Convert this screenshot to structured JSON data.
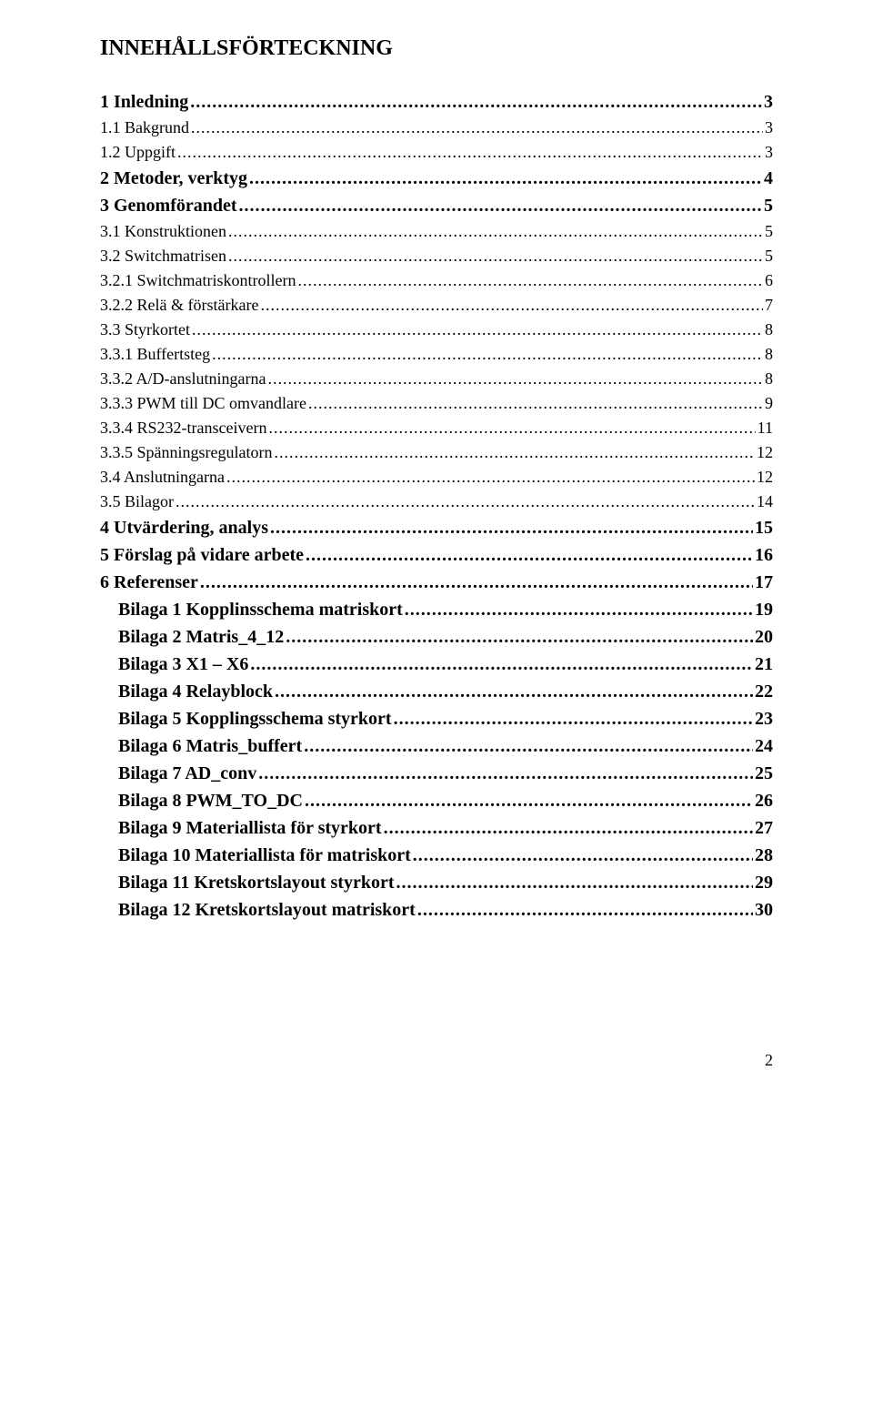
{
  "title": "INNEHÅLLSFÖRTECKNING",
  "entries": [
    {
      "label": "1 Inledning",
      "page": "3",
      "cls": "lvl1"
    },
    {
      "label": "1.1 Bakgrund",
      "page": "3",
      "cls": "lvl2"
    },
    {
      "label": "1.2 Uppgift",
      "page": "3",
      "cls": "lvl2"
    },
    {
      "label": "2 Metoder, verktyg",
      "page": "4",
      "cls": "lvl1"
    },
    {
      "label": "3 Genomförandet",
      "page": "5",
      "cls": "lvl1"
    },
    {
      "label": "3.1 Konstruktionen",
      "page": "5",
      "cls": "lvl2"
    },
    {
      "label": "3.2 Switchmatrisen",
      "page": "5",
      "cls": "lvl2"
    },
    {
      "label": "3.2.1 Switchmatriskontrollern",
      "page": "6",
      "cls": "lvl3"
    },
    {
      "label": "3.2.2 Relä & förstärkare",
      "page": "7",
      "cls": "lvl3"
    },
    {
      "label": "3.3 Styrkortet",
      "page": "8",
      "cls": "lvl2"
    },
    {
      "label": "3.3.1 Buffertsteg",
      "page": "8",
      "cls": "lvl3"
    },
    {
      "label": "3.3.2 A/D-anslutningarna",
      "page": "8",
      "cls": "lvl3"
    },
    {
      "label": "3.3.3 PWM till DC omvandlare",
      "page": "9",
      "cls": "lvl3"
    },
    {
      "label": "3.3.4 RS232-transceivern",
      "page": "11",
      "cls": "lvl3"
    },
    {
      "label": "3.3.5 Spänningsregulatorn",
      "page": "12",
      "cls": "lvl3"
    },
    {
      "label": "3.4 Anslutningarna",
      "page": "12",
      "cls": "lvl2"
    },
    {
      "label": "3.5 Bilagor",
      "page": "14",
      "cls": "lvl2"
    },
    {
      "label": "4 Utvärdering, analys",
      "page": "15",
      "cls": "lvl1"
    },
    {
      "label": "5 Förslag på vidare arbete",
      "page": "16",
      "cls": "lvl1"
    },
    {
      "label": "6 Referenser",
      "page": "17",
      "cls": "lvl1"
    },
    {
      "label": "Bilaga 1 Kopplinsschema matriskort",
      "page": "19",
      "cls": "lvl2b"
    },
    {
      "label": "Bilaga 2 Matris_4_12",
      "page": "20",
      "cls": "lvl2b"
    },
    {
      "label": "Bilaga 3 X1 – X6",
      "page": "21",
      "cls": "lvl2b"
    },
    {
      "label": "Bilaga 4 Relayblock",
      "page": "22",
      "cls": "lvl2b"
    },
    {
      "label": "Bilaga 5 Kopplingsschema styrkort",
      "page": "23",
      "cls": "lvl2b"
    },
    {
      "label": "Bilaga 6 Matris_buffert",
      "page": "24",
      "cls": "lvl2b"
    },
    {
      "label": "Bilaga 7 AD_conv",
      "page": "25",
      "cls": "lvl2b"
    },
    {
      "label": "Bilaga 8 PWM_TO_DC",
      "page": "26",
      "cls": "lvl2b"
    },
    {
      "label": "Bilaga 9 Materiallista för styrkort",
      "page": "27",
      "cls": "lvl2b"
    },
    {
      "label": "Bilaga 10 Materiallista för matriskort",
      "page": "28",
      "cls": "lvl2b"
    },
    {
      "label": "Bilaga 11 Kretskortslayout styrkort",
      "page": "29",
      "cls": "lvl2b"
    },
    {
      "label": "Bilaga 12 Kretskortslayout matriskort",
      "page": "30",
      "cls": "lvl2b"
    }
  ],
  "pageNumber": "2"
}
